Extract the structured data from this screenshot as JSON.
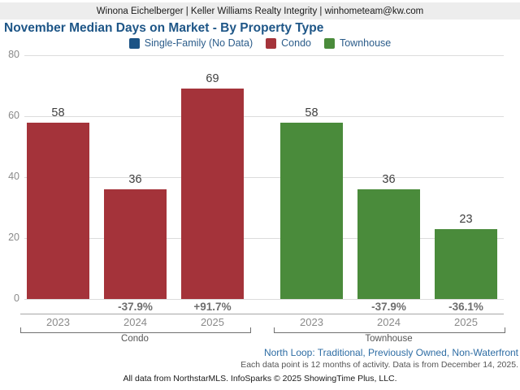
{
  "header": {
    "contact_line": "Winona Eichelberger | Keller Williams Realty Integrity | winhometeam@kw.com"
  },
  "title": "November Median Days on Market - By Property Type",
  "legend": [
    {
      "label": "Single-Family (No Data)",
      "color": "#1b5385"
    },
    {
      "label": "Condo",
      "color": "#a4333a"
    },
    {
      "label": "Townhouse",
      "color": "#4a8b3b"
    }
  ],
  "chart_data": {
    "type": "bar",
    "title": "November Median Days on Market - By Property Type",
    "categories": [
      "2023",
      "2024",
      "2025"
    ],
    "series": [
      {
        "name": "Single-Family",
        "legend_label": "Single-Family (No Data)",
        "color": "#1b5385",
        "values": [],
        "pct_change": []
      },
      {
        "name": "Condo",
        "legend_label": "Condo",
        "color": "#a4333a",
        "values": [
          58,
          36,
          69
        ],
        "pct_change": [
          "",
          "-37.9%",
          "+91.7%"
        ]
      },
      {
        "name": "Townhouse",
        "legend_label": "Townhouse",
        "color": "#4a8b3b",
        "values": [
          58,
          36,
          23
        ],
        "pct_change": [
          "",
          "-37.9%",
          "-36.1%"
        ]
      }
    ],
    "xlabel": "",
    "ylabel": "",
    "ylim": [
      0,
      80
    ],
    "yticks": [
      0,
      20,
      40,
      60,
      80
    ],
    "grid": true,
    "legend_position": "top"
  },
  "footer": {
    "filter_line": "North Loop: Traditional, Previously Owned, Non-Waterfront",
    "data_note": "Each data point is 12 months of activity. Data is from December 14, 2025.",
    "attribution": "All data from NorthstarMLS. InfoSparks © 2025 ShowingTime Plus, LLC."
  }
}
